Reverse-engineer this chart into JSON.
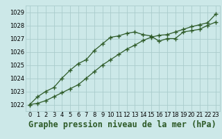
{
  "line1_x": [
    0,
    1,
    2,
    3,
    4,
    5,
    6,
    7,
    8,
    9,
    10,
    11,
    12,
    13,
    14,
    15,
    16,
    17,
    18,
    19,
    20,
    21,
    22,
    23
  ],
  "line1_y": [
    1022.0,
    1022.6,
    1023.0,
    1023.3,
    1024.0,
    1024.6,
    1025.1,
    1025.4,
    1026.1,
    1026.6,
    1027.1,
    1027.2,
    1027.4,
    1027.5,
    1027.3,
    1027.2,
    1026.8,
    1027.0,
    1027.0,
    1027.5,
    1027.6,
    1027.7,
    1028.0,
    1028.25
  ],
  "line2_x": [
    0,
    1,
    2,
    3,
    4,
    5,
    6,
    7,
    8,
    9,
    10,
    11,
    12,
    13,
    14,
    15,
    16,
    17,
    18,
    19,
    20,
    21,
    22,
    23
  ],
  "line2_y": [
    1022.0,
    1022.1,
    1022.3,
    1022.6,
    1022.9,
    1023.2,
    1023.5,
    1024.0,
    1024.5,
    1025.0,
    1025.4,
    1025.8,
    1026.2,
    1026.5,
    1026.85,
    1027.1,
    1027.25,
    1027.3,
    1027.5,
    1027.7,
    1027.9,
    1028.05,
    1028.2,
    1028.85
  ],
  "ylim": [
    1021.5,
    1029.5
  ],
  "yticks": [
    1022,
    1023,
    1024,
    1025,
    1026,
    1027,
    1028,
    1029
  ],
  "xlim": [
    -0.5,
    23.5
  ],
  "xticks": [
    0,
    1,
    2,
    3,
    4,
    5,
    6,
    7,
    8,
    9,
    10,
    11,
    12,
    13,
    14,
    15,
    16,
    17,
    18,
    19,
    20,
    21,
    22,
    23
  ],
  "xlabel": "Graphe pression niveau de la mer (hPa)",
  "line_color": "#2d5a27",
  "bg_color": "#cce8e8",
  "grid_color": "#aacccc",
  "marker": "+",
  "linewidth": 0.9,
  "markersize": 4,
  "markeredgewidth": 1.0,
  "xlabel_fontsize": 8.5,
  "tick_fontsize": 6.0
}
